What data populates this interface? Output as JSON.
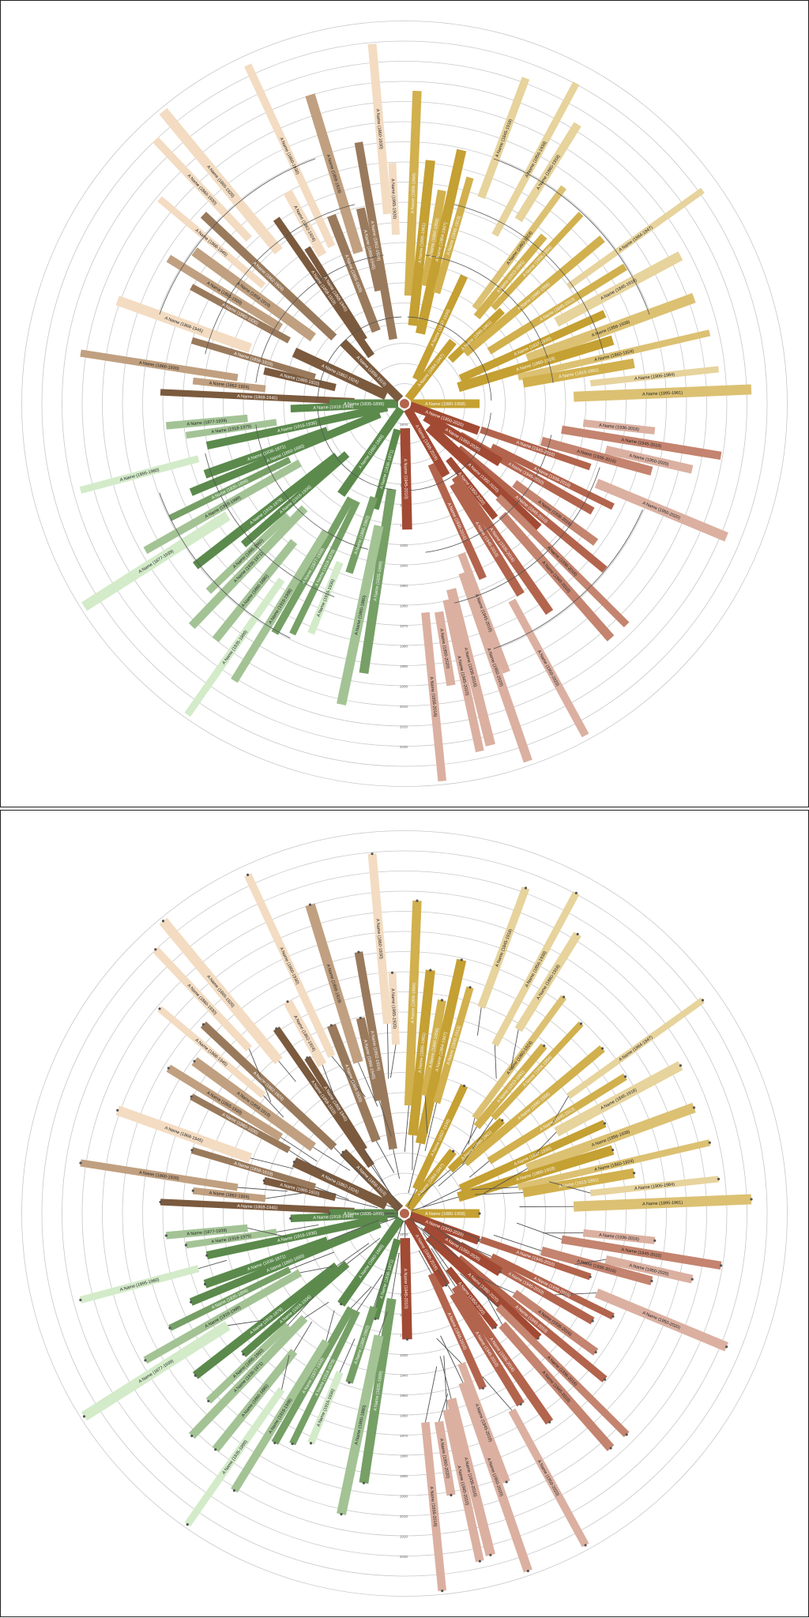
{
  "figure": {
    "panels": [
      {
        "id": "top",
        "style": "arcs"
      },
      {
        "id": "bottom",
        "style": "branches"
      }
    ]
  },
  "palette": {
    "gold": [
      "#c5a032",
      "#d1b04d",
      "#dcc173",
      "#e7d39c"
    ],
    "rust": [
      "#a24a33",
      "#b3644d",
      "#c4846f",
      "#dbb0a1"
    ],
    "green": [
      "#5b8a4c",
      "#76a066",
      "#a3c395",
      "#d3ebc9"
    ],
    "brown": [
      "#7b5a3e",
      "#9a7a5c",
      "#c0a080",
      "#f3dcc2"
    ],
    "grid": "#c8c8c8",
    "connector": "#555555"
  },
  "year_axis": {
    "labels": [
      "1870",
      "1880",
      "1890",
      "1900",
      "1910",
      "1920",
      "1930",
      "1940",
      "1950",
      "1960",
      "1970",
      "1980",
      "1990",
      "2000",
      "2010",
      "2020",
      "2030"
    ]
  },
  "chart_data": {
    "type": "radial-timeline",
    "individuals": [
      {
        "label": "A Name (1868-1945)",
        "group": "brown"
      },
      {
        "label": "A Name (1862-1924)",
        "group": "brown"
      },
      {
        "label": "A Name (1860-1930)",
        "group": "brown"
      },
      {
        "label": "A Name (1865-1920)",
        "group": "brown"
      },
      {
        "label": "A Name (1858-1919)",
        "group": "brown"
      },
      {
        "label": "A Name (1906-1984)",
        "group": "gold"
      },
      {
        "label": "A Name (1895-1961)",
        "group": "gold"
      },
      {
        "label": "A Name (1880-1958)",
        "group": "gold"
      },
      {
        "label": "A Name (1864-1947)",
        "group": "gold"
      },
      {
        "label": "A Name (1845-1913)",
        "group": "gold"
      },
      {
        "label": "A Name (1845-1918)",
        "group": "gold"
      },
      {
        "label": "A Name (1837-1930)",
        "group": "gold"
      },
      {
        "label": "A Name (1856-1938)",
        "group": "gold"
      },
      {
        "label": "A Name (1860-1918)",
        "group": "gold"
      },
      {
        "label": "A Name (1860-1924)",
        "group": "gold"
      },
      {
        "label": "A Name (1913-1991)",
        "group": "gold"
      },
      {
        "label": "A Name (1835-1899)",
        "group": "green"
      },
      {
        "label": "A Name (1860-1880)",
        "group": "green"
      },
      {
        "label": "A Name (1836-1871)",
        "group": "green"
      },
      {
        "label": "A Name (1895-1960)",
        "group": "green"
      },
      {
        "label": "A Name (1916-1936)",
        "group": "green"
      },
      {
        "label": "A Name (1918-1979)",
        "group": "green"
      },
      {
        "label": "A Name (1877-1939)",
        "group": "green"
      },
      {
        "label": "A Name (1918-1998)",
        "group": "green"
      },
      {
        "label": "A Name (1936-2016)",
        "group": "rust"
      },
      {
        "label": "A Name (1945-2010)",
        "group": "rust"
      },
      {
        "label": "A Name (1950-2020)",
        "group": "rust"
      }
    ]
  }
}
